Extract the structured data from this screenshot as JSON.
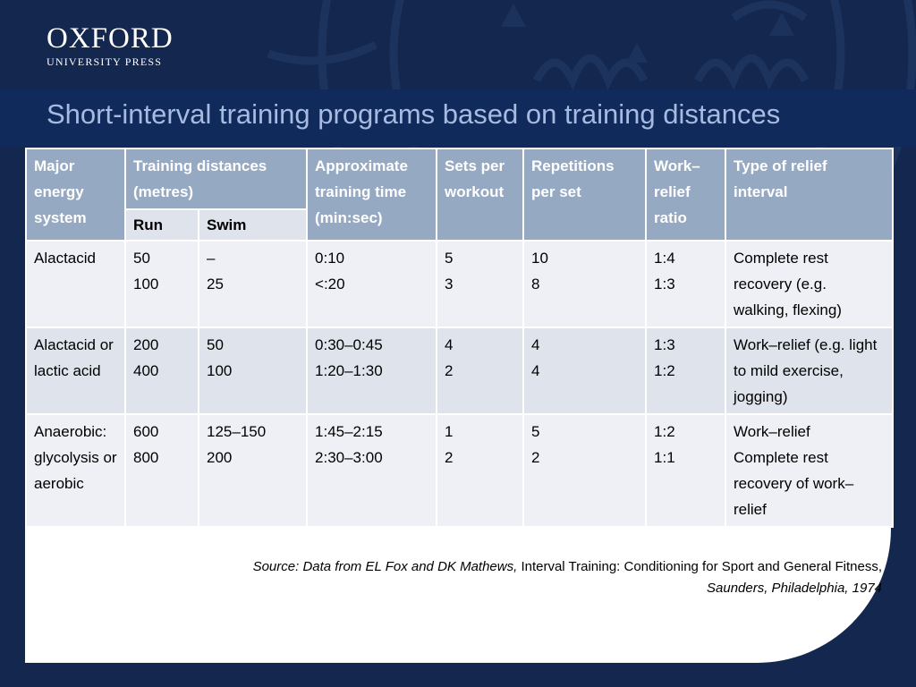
{
  "logo": {
    "main": "OXFORD",
    "sub": "UNIVERSITY PRESS"
  },
  "title": "Short-interval training programs based on training distances",
  "table": {
    "headers": {
      "energy": "Major energy system",
      "distances": "Training distances (metres)",
      "run": "Run",
      "swim": "Swim",
      "time": "Approximate training time (min:sec)",
      "sets": "Sets per workout",
      "reps": "Repetitions per set",
      "ratio": "Work–relief ratio",
      "relief": "Type of relief interval"
    },
    "rows": [
      {
        "energy": "Alactacid",
        "run": [
          "50",
          "100"
        ],
        "swim": [
          "–",
          "25"
        ],
        "time": [
          "0:10",
          "<:20"
        ],
        "sets": [
          "5",
          "3"
        ],
        "reps": [
          "10",
          "8"
        ],
        "ratio": [
          "1:4",
          "1:3"
        ],
        "relief": [
          "Complete rest recovery (e.g. walking, flexing)"
        ]
      },
      {
        "energy": "Alactacid or lactic acid",
        "run": [
          "200",
          "400"
        ],
        "swim": [
          "50",
          "100"
        ],
        "time": [
          "0:30–0:45",
          "1:20–1:30"
        ],
        "sets": [
          "4",
          "2"
        ],
        "reps": [
          "4",
          "4"
        ],
        "ratio": [
          "1:3",
          "1:2"
        ],
        "relief": [
          "Work–relief (e.g. light to mild exercise, jogging)"
        ]
      },
      {
        "energy": "Anaerobic: glycolysis or aerobic",
        "run": [
          "600",
          "800"
        ],
        "swim": [
          "125–150",
          "200"
        ],
        "time": [
          "1:45–2:15",
          "2:30–3:00"
        ],
        "sets": [
          "1",
          "2"
        ],
        "reps": [
          "5",
          "2"
        ],
        "ratio": [
          "1:2",
          "1:1"
        ],
        "relief": [
          "Work–relief",
          "Complete rest recovery of work–relief"
        ]
      }
    ]
  },
  "source": {
    "prefix": "Source: Data from EL Fox and DK Mathews,",
    "work": "Interval Training: Conditioning for Sport and General Fitness,",
    "suffix": "Saunders, Philadelphia, 1974"
  },
  "colors": {
    "background": "#14284f",
    "title_band": "#102a5c",
    "title_text": "#a7bbe1",
    "header_fill": "#96a9c3",
    "row_light": "#eef0f5",
    "row_dark": "#dfe4ec"
  }
}
